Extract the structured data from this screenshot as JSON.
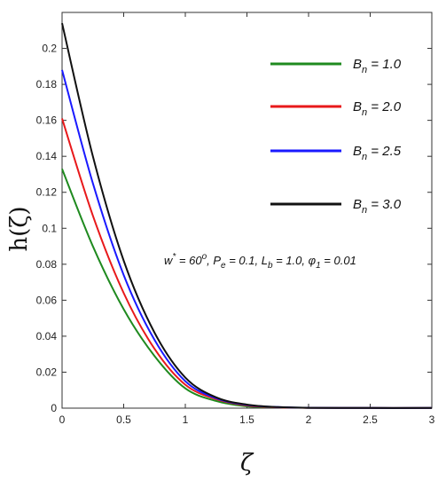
{
  "chart_data": {
    "type": "line",
    "xlabel": "ζ",
    "ylabel": "h(ζ)",
    "xlim": [
      0,
      3
    ],
    "ylim": [
      0,
      0.22
    ],
    "xticks": [
      "0",
      "0.5",
      "1",
      "1.5",
      "2",
      "2.5",
      "3"
    ],
    "yticks": [
      "0",
      "0.02",
      "0.04",
      "0.06",
      "0.08",
      "0.1",
      "0.12",
      "0.14",
      "0.16",
      "0.18",
      "0.2"
    ],
    "grid": false,
    "legend_position": "top-right",
    "annotation": {
      "w_sym": "w",
      "w_sup": "*",
      "w_val": " = 60",
      "w_deg": "o",
      "pe_sym": ", P",
      "pe_sub": "e",
      "pe_val": " = 0.1, L",
      "lb_sub": "b",
      "lb_val": " = 1.0, ",
      "phi_sym": "φ",
      "phi_sub": "1",
      "phi_val": " = 0.01"
    },
    "series": [
      {
        "name_sym": "B",
        "name_sub": "n",
        "name_val": " = 1.0",
        "color": "#1f8a1f",
        "x": [
          0,
          0.25,
          0.5,
          0.75,
          1.0,
          1.25,
          1.5,
          1.75,
          2.0,
          2.5,
          3.0
        ],
        "y": [
          0.133,
          0.09,
          0.055,
          0.029,
          0.011,
          0.004,
          0.001,
          0.0005,
          0.0002,
          0.0001,
          0.0001
        ]
      },
      {
        "name_sym": "B",
        "name_sub": "n",
        "name_val": " = 2.0",
        "color": "#e8191b",
        "x": [
          0,
          0.25,
          0.5,
          0.75,
          1.0,
          1.25,
          1.5,
          1.75,
          2.0,
          2.5,
          3.0
        ],
        "y": [
          0.161,
          0.107,
          0.064,
          0.033,
          0.013,
          0.005,
          0.0015,
          0.0005,
          0.0002,
          0.0001,
          0.0001
        ]
      },
      {
        "name_sym": "B",
        "name_sub": "n",
        "name_val": " = 2.5",
        "color": "#1a1aff",
        "x": [
          0,
          0.25,
          0.5,
          0.75,
          1.0,
          1.25,
          1.5,
          1.75,
          2.0,
          2.5,
          3.0
        ],
        "y": [
          0.188,
          0.125,
          0.074,
          0.038,
          0.015,
          0.0055,
          0.0018,
          0.0006,
          0.0002,
          0.0001,
          0.0001
        ]
      },
      {
        "name_sym": "B",
        "name_sub": "n",
        "name_val": " = 3.0",
        "color": "#111111",
        "x": [
          0,
          0.25,
          0.5,
          0.75,
          1.0,
          1.25,
          1.5,
          1.75,
          2.0,
          2.5,
          3.0
        ],
        "y": [
          0.214,
          0.14,
          0.082,
          0.042,
          0.017,
          0.006,
          0.002,
          0.0006,
          0.0002,
          0.0001,
          0.0001
        ]
      }
    ]
  }
}
